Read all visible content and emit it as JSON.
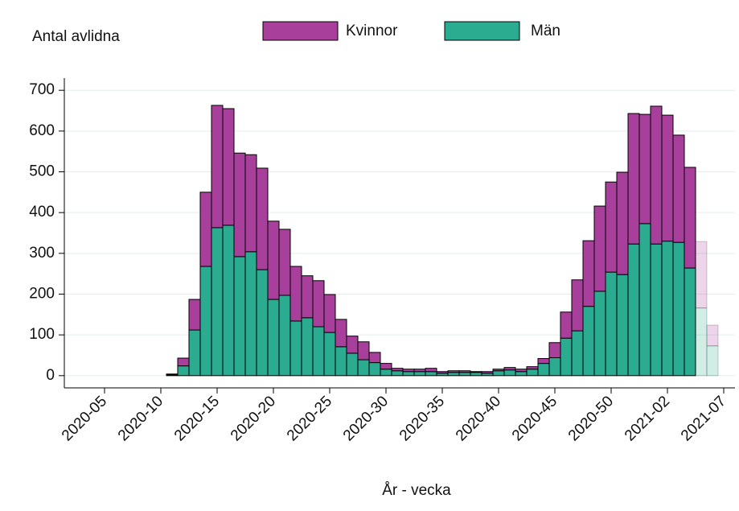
{
  "chart_data": {
    "type": "stacked_bar",
    "y_label": "Antal avlidna",
    "x_label": "År - vecka",
    "x": [
      "2020-11",
      "2020-12",
      "2020-13",
      "2020-14",
      "2020-15",
      "2020-16",
      "2020-17",
      "2020-18",
      "2020-19",
      "2020-20",
      "2020-21",
      "2020-22",
      "2020-23",
      "2020-24",
      "2020-25",
      "2020-26",
      "2020-27",
      "2020-28",
      "2020-29",
      "2020-30",
      "2020-31",
      "2020-32",
      "2020-33",
      "2020-34",
      "2020-35",
      "2020-36",
      "2020-37",
      "2020-38",
      "2020-39",
      "2020-40",
      "2020-41",
      "2020-42",
      "2020-43",
      "2020-44",
      "2020-45",
      "2020-46",
      "2020-47",
      "2020-48",
      "2020-49",
      "2020-50",
      "2020-51",
      "2020-52",
      "2020-53",
      "2021-01",
      "2021-02",
      "2021-03",
      "2021-04",
      "2021-05",
      "2021-06"
    ],
    "series": [
      {
        "name": "Män",
        "color": "#2bab8f",
        "values": [
          2,
          24,
          112,
          268,
          363,
          369,
          292,
          304,
          260,
          187,
          197,
          134,
          142,
          120,
          106,
          71,
          55,
          39,
          32,
          16,
          12,
          10,
          10,
          10,
          6,
          8,
          8,
          8,
          6,
          12,
          14,
          10,
          16,
          30,
          44,
          92,
          110,
          170,
          207,
          254,
          248,
          323,
          373,
          323,
          330,
          327,
          264,
          166,
          73
        ]
      },
      {
        "name": "Kvinnor",
        "color": "#a8409b",
        "values": [
          2,
          19,
          75,
          182,
          300,
          286,
          254,
          238,
          249,
          192,
          162,
          134,
          103,
          113,
          93,
          67,
          42,
          44,
          25,
          14,
          6,
          6,
          6,
          8,
          4,
          4,
          4,
          2,
          4,
          4,
          6,
          6,
          6,
          12,
          37,
          64,
          125,
          161,
          209,
          221,
          251,
          320,
          268,
          338,
          309,
          263,
          247,
          163,
          51
        ]
      }
    ],
    "faded_from": "2021-05",
    "xlim": [
      "2020-01",
      "2021-08"
    ],
    "xticks": [
      "2020-05",
      "2020-10",
      "2020-15",
      "2020-20",
      "2020-25",
      "2020-30",
      "2020-35",
      "2020-40",
      "2020-45",
      "2020-50",
      "2021-02",
      "2021-07"
    ],
    "ylim": [
      -30,
      730
    ],
    "yticks": [
      0,
      100,
      200,
      300,
      400,
      500,
      600,
      700
    ],
    "grid": true
  }
}
